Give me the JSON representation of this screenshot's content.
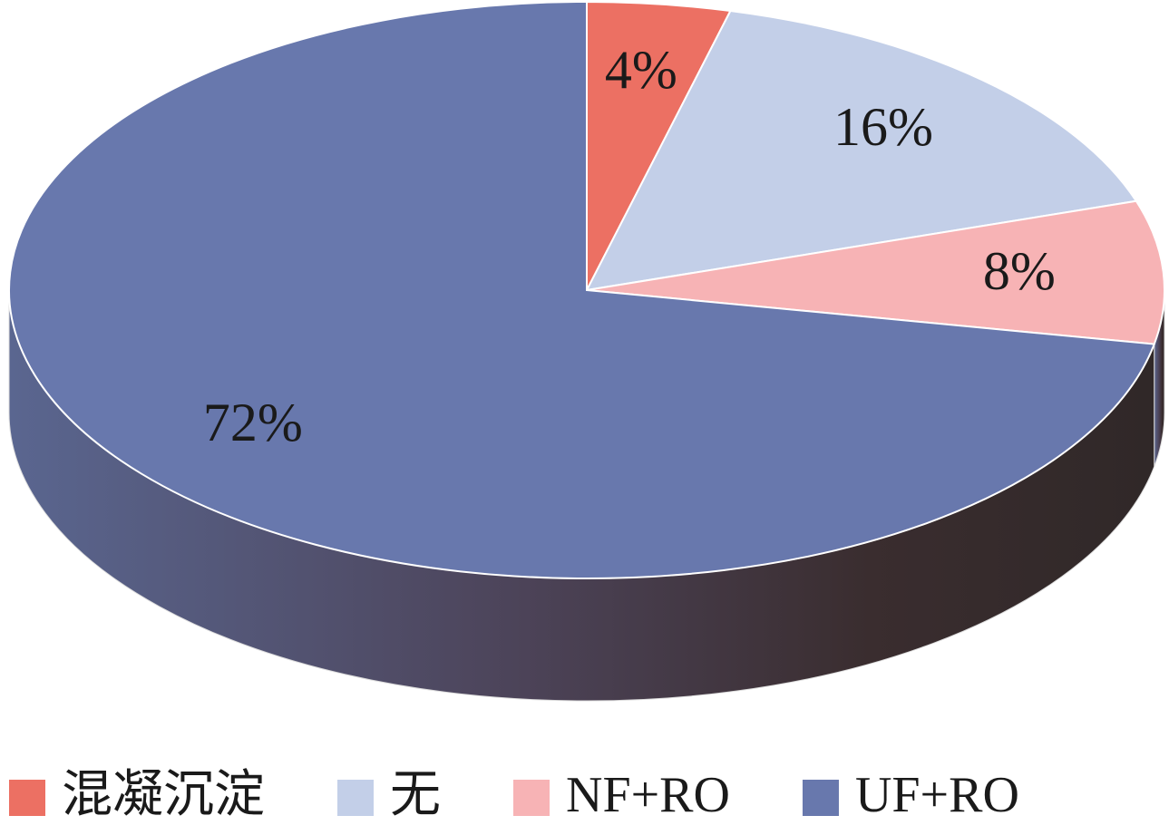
{
  "chart_data": {
    "type": "pie",
    "categories": [
      "混凝沉淀",
      "无",
      "NF+RO",
      "UF+RO"
    ],
    "values": [
      4,
      16,
      8,
      72
    ],
    "value_labels": [
      "4%",
      "16%",
      "8%",
      "72%"
    ],
    "colors": [
      "#ec7063",
      "#c3cfe8",
      "#f7b3b5",
      "#6878ad"
    ],
    "legend": "bottom"
  }
}
